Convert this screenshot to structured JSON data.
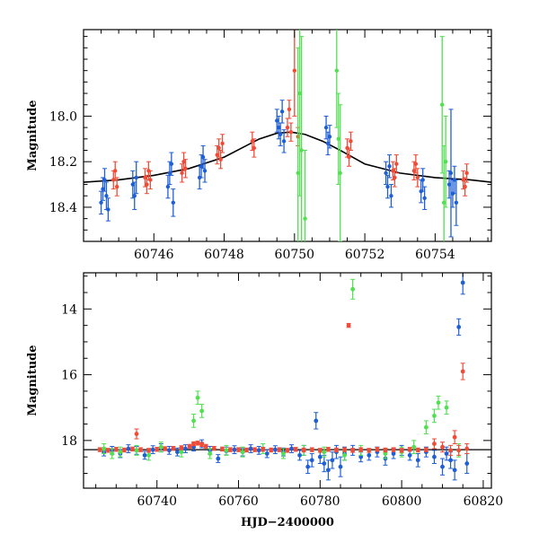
{
  "figure": {
    "xlabel_bottom": "HJD−2400000"
  },
  "chart_data": [
    {
      "type": "scatter",
      "panel": "top",
      "title": "",
      "xlabel": "",
      "ylabel": "Magnitude",
      "xlim": [
        60744.0,
        60755.6
      ],
      "ylim": [
        18.55,
        17.62
      ],
      "y_inverted": true,
      "xticks": [
        60746,
        60748,
        60750,
        60752,
        60754
      ],
      "yticks": [
        18.0,
        18.2,
        18.4
      ],
      "grid": false,
      "colors": {
        "blue": "#1f5fd6",
        "red": "#f04b37",
        "green": "#50e050",
        "model": "#000000"
      },
      "model_curve": {
        "name": "",
        "x": [
          60744.0,
          60745.0,
          60746.0,
          60747.0,
          60748.0,
          60748.5,
          60749.0,
          60749.5,
          60749.9,
          60750.3,
          60750.8,
          60751.3,
          60752.0,
          60753.0,
          60754.0,
          60755.0,
          60755.6
        ],
        "y": [
          18.29,
          18.28,
          18.26,
          18.23,
          18.18,
          18.14,
          18.1,
          18.075,
          18.07,
          18.08,
          18.11,
          18.15,
          18.21,
          18.25,
          18.27,
          18.28,
          18.29
        ]
      },
      "series": [
        {
          "color": "blue",
          "x": [
            60744.5,
            60744.55,
            60744.6,
            60744.65,
            60744.7,
            60745.4,
            60745.45,
            60745.5,
            60746.4,
            60746.45,
            60746.5,
            60746.55,
            60747.3,
            60747.35,
            60747.4,
            60747.45,
            60749.5,
            60749.55,
            60749.6,
            60749.65,
            60749.7,
            60750.9,
            60750.95,
            60751.0,
            60752.6,
            60752.65,
            60752.7,
            60752.75,
            60753.6,
            60753.65,
            60753.7,
            60754.4,
            60754.45,
            60754.5,
            60754.55,
            60754.6
          ],
          "y": [
            18.38,
            18.32,
            18.28,
            18.35,
            18.41,
            18.3,
            18.35,
            18.27,
            18.31,
            18.25,
            18.21,
            18.38,
            18.27,
            18.22,
            18.18,
            18.24,
            18.02,
            18.05,
            18.08,
            17.98,
            18.11,
            18.05,
            18.12,
            18.09,
            18.25,
            18.31,
            18.22,
            18.35,
            18.33,
            18.28,
            18.36,
            18.3,
            18.25,
            18.34,
            18.28,
            18.38
          ],
          "err": [
            0.05,
            0.05,
            0.05,
            0.06,
            0.05,
            0.06,
            0.06,
            0.07,
            0.05,
            0.05,
            0.05,
            0.06,
            0.05,
            0.05,
            0.05,
            0.05,
            0.05,
            0.05,
            0.05,
            0.05,
            0.05,
            0.05,
            0.05,
            0.05,
            0.05,
            0.05,
            0.05,
            0.05,
            0.05,
            0.05,
            0.05,
            0.06,
            0.28,
            0.06,
            0.06,
            0.1
          ]
        },
        {
          "color": "red",
          "x": [
            60744.85,
            60744.9,
            60744.95,
            60745.75,
            60745.8,
            60745.85,
            60745.9,
            60746.8,
            60746.85,
            60746.9,
            60747.8,
            60747.85,
            60747.9,
            60747.95,
            60748.8,
            60748.85,
            60749.8,
            60749.85,
            60749.9,
            60750.0,
            60750.1,
            60751.5,
            60751.55,
            60751.6,
            60752.8,
            60752.85,
            60752.9,
            60753.4,
            60753.45,
            60753.5,
            60754.8,
            60754.85,
            60754.9
          ],
          "y": [
            18.28,
            18.24,
            18.31,
            18.27,
            18.3,
            18.24,
            18.28,
            18.25,
            18.2,
            18.23,
            18.17,
            18.14,
            18.19,
            18.12,
            18.11,
            18.14,
            18.05,
            17.97,
            18.07,
            17.8,
            18.09,
            18.14,
            18.18,
            18.11,
            18.24,
            18.27,
            18.21,
            18.24,
            18.21,
            18.27,
            18.28,
            18.31,
            18.25
          ],
          "err": [
            0.04,
            0.04,
            0.04,
            0.04,
            0.04,
            0.04,
            0.04,
            0.04,
            0.04,
            0.04,
            0.04,
            0.04,
            0.04,
            0.04,
            0.04,
            0.04,
            0.04,
            0.04,
            0.04,
            0.2,
            0.04,
            0.04,
            0.04,
            0.04,
            0.04,
            0.04,
            0.04,
            0.04,
            0.04,
            0.04,
            0.04,
            0.04,
            0.04
          ]
        },
        {
          "color": "green",
          "x": [
            60750.1,
            60750.15,
            60750.2,
            60750.3,
            60751.2,
            60751.25,
            60751.3,
            60754.2,
            60754.25,
            60754.3
          ],
          "y": [
            18.25,
            17.9,
            18.15,
            18.45,
            17.8,
            18.1,
            18.25,
            17.95,
            18.38,
            18.2
          ],
          "err": [
            0.55,
            0.45,
            0.5,
            0.3,
            0.25,
            0.2,
            0.3,
            0.3,
            0.25,
            0.2
          ]
        }
      ]
    },
    {
      "type": "scatter",
      "panel": "bottom",
      "title": "",
      "xlabel": "HJD−2400000",
      "ylabel": "Magnitude",
      "xlim": [
        60722.0,
        60822.0
      ],
      "ylim": [
        19.45,
        12.9
      ],
      "y_inverted": true,
      "xticks": [
        60740,
        60760,
        60780,
        60800,
        60820
      ],
      "yticks": [
        14,
        16,
        18
      ],
      "grid": false,
      "reference_line": {
        "y": 18.28
      },
      "series": [
        {
          "color": "blue",
          "x": [
            60727,
            60729,
            60731,
            60733,
            60735,
            60737,
            60739,
            60741,
            60743,
            60745,
            60747,
            60749,
            60751,
            60753,
            60755,
            60757,
            60759,
            60761,
            60763,
            60765,
            60767,
            60769,
            60771,
            60773,
            60775,
            60776,
            60777,
            60778,
            60779,
            60780,
            60781,
            60782,
            60783,
            60784,
            60785,
            60786,
            60788,
            60790,
            60792,
            60794,
            60796,
            60798,
            60800,
            60802,
            60804,
            60806,
            60808,
            60810,
            60811,
            60812,
            60813,
            60814,
            60815,
            60816
          ],
          "y": [
            18.35,
            18.3,
            18.4,
            18.25,
            18.3,
            18.45,
            18.28,
            18.22,
            18.3,
            18.35,
            18.25,
            18.2,
            18.1,
            18.3,
            18.55,
            18.32,
            18.28,
            18.35,
            18.25,
            18.3,
            18.4,
            18.28,
            18.35,
            18.25,
            18.45,
            18.3,
            18.8,
            18.6,
            17.4,
            18.5,
            18.7,
            18.9,
            18.6,
            18.35,
            18.8,
            18.4,
            18.3,
            18.5,
            18.45,
            18.35,
            18.55,
            18.4,
            18.3,
            18.45,
            18.6,
            18.35,
            18.5,
            18.8,
            18.4,
            18.6,
            18.9,
            14.55,
            13.2,
            18.7
          ],
          "err": [
            0.12,
            0.12,
            0.12,
            0.12,
            0.12,
            0.12,
            0.12,
            0.12,
            0.12,
            0.12,
            0.12,
            0.12,
            0.12,
            0.12,
            0.12,
            0.12,
            0.12,
            0.12,
            0.12,
            0.12,
            0.12,
            0.12,
            0.12,
            0.12,
            0.15,
            0.15,
            0.2,
            0.2,
            0.25,
            0.2,
            0.25,
            0.3,
            0.25,
            0.2,
            0.3,
            0.2,
            0.15,
            0.15,
            0.15,
            0.15,
            0.2,
            0.15,
            0.15,
            0.15,
            0.2,
            0.15,
            0.2,
            0.25,
            0.2,
            0.25,
            0.3,
            0.25,
            0.35,
            0.3
          ]
        },
        {
          "color": "green",
          "x": [
            60727,
            60729,
            60731,
            60735,
            60738,
            60741,
            60746,
            60749,
            60750,
            60751,
            60753,
            60757,
            60761,
            60766,
            60771,
            60776,
            60781,
            60786,
            60788,
            60790,
            60796,
            60800,
            60803,
            60806,
            60808,
            60809,
            60811,
            60814
          ],
          "y": [
            18.25,
            18.4,
            18.35,
            18.3,
            18.45,
            18.2,
            18.35,
            17.4,
            16.7,
            17.1,
            18.4,
            18.3,
            18.35,
            18.25,
            18.4,
            18.3,
            18.35,
            18.45,
            13.4,
            18.3,
            18.4,
            18.35,
            18.2,
            17.6,
            17.25,
            16.85,
            17.0,
            18.3
          ],
          "err": [
            0.15,
            0.15,
            0.15,
            0.15,
            0.15,
            0.15,
            0.15,
            0.2,
            0.2,
            0.2,
            0.15,
            0.15,
            0.15,
            0.15,
            0.15,
            0.15,
            0.15,
            0.15,
            0.3,
            0.15,
            0.15,
            0.15,
            0.2,
            0.2,
            0.2,
            0.2,
            0.2,
            0.2
          ]
        },
        {
          "color": "red",
          "x": [
            60726,
            60728,
            60730,
            60732,
            60734,
            60735,
            60736,
            60738,
            60740,
            60742,
            60744,
            60746,
            60748,
            60749,
            60750,
            60751,
            60752,
            60754,
            60756,
            60758,
            60760,
            60762,
            60764,
            60766,
            60768,
            60770,
            60772,
            60774,
            60776,
            60778,
            60780,
            60782,
            60784,
            60786,
            60787,
            60788,
            60790,
            60792,
            60794,
            60796,
            60798,
            60800,
            60802,
            60804,
            60806,
            60808,
            60810,
            60812,
            60813,
            60814,
            60815,
            60816
          ],
          "y": [
            18.28,
            18.3,
            18.27,
            18.29,
            18.26,
            17.8,
            18.28,
            18.3,
            18.27,
            18.25,
            18.24,
            18.22,
            18.18,
            18.1,
            18.08,
            18.12,
            18.18,
            18.24,
            18.26,
            18.28,
            18.28,
            18.29,
            18.28,
            18.27,
            18.29,
            18.28,
            18.3,
            18.27,
            18.29,
            18.28,
            18.3,
            18.27,
            18.29,
            18.28,
            14.5,
            18.3,
            18.28,
            18.3,
            18.27,
            18.29,
            18.28,
            18.3,
            18.27,
            18.29,
            18.28,
            18.1,
            18.2,
            18.3,
            17.9,
            18.3,
            15.9,
            18.25
          ],
          "err": [
            0.06,
            0.06,
            0.06,
            0.06,
            0.06,
            0.15,
            0.06,
            0.06,
            0.06,
            0.06,
            0.06,
            0.06,
            0.06,
            0.06,
            0.06,
            0.06,
            0.06,
            0.06,
            0.06,
            0.06,
            0.06,
            0.06,
            0.06,
            0.06,
            0.06,
            0.06,
            0.06,
            0.06,
            0.06,
            0.06,
            0.06,
            0.06,
            0.06,
            0.06,
            0.06,
            0.06,
            0.06,
            0.06,
            0.06,
            0.06,
            0.06,
            0.06,
            0.06,
            0.06,
            0.06,
            0.15,
            0.15,
            0.15,
            0.2,
            0.15,
            0.25,
            0.15
          ]
        }
      ]
    }
  ]
}
